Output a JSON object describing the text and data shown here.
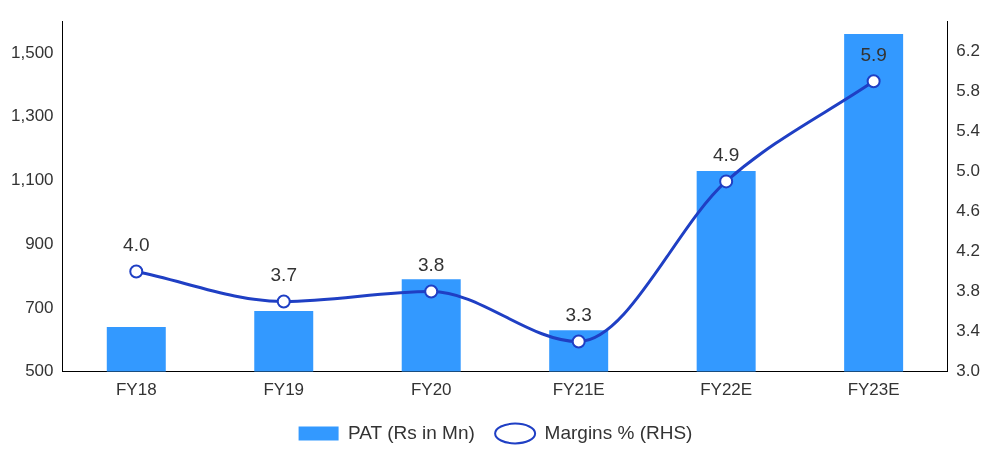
{
  "chart_data": {
    "type": "bar",
    "categories": [
      "FY18",
      "FY19",
      "FY20",
      "FY21E",
      "FY22E",
      "FY23E"
    ],
    "series": [
      {
        "name": "PAT (Rs in Mn)",
        "color": "#3399ff",
        "values": [
          640,
          690,
          790,
          630,
          1130,
          1560
        ]
      },
      {
        "name": "Margins % (RHS)",
        "type": "line",
        "axis": "y2",
        "color": "#1f3fc4",
        "values": [
          4.0,
          3.7,
          3.8,
          3.3,
          4.9,
          5.9
        ],
        "value_labels": [
          "4.0",
          "3.7",
          "3.8",
          "3.3",
          "4.9",
          "5.9"
        ]
      }
    ],
    "ylim": [
      500,
      1600
    ],
    "yticks": [
      {
        "value": 500,
        "label": "500"
      },
      {
        "value": 700,
        "label": "700"
      },
      {
        "value": 900,
        "label": "900"
      },
      {
        "value": 1100,
        "label": "1,100"
      },
      {
        "value": 1300,
        "label": "1,300"
      },
      {
        "value": 1500,
        "label": "1,500"
      }
    ],
    "y2lim": [
      3.0,
      6.5
    ],
    "y2ticks": [
      {
        "value": 3.0,
        "label": "3.0"
      },
      {
        "value": 3.4,
        "label": "3.4"
      },
      {
        "value": 3.8,
        "label": "3.8"
      },
      {
        "value": 4.2,
        "label": "4.2"
      },
      {
        "value": 4.6,
        "label": "4.6"
      },
      {
        "value": 5.0,
        "label": "5.0"
      },
      {
        "value": 5.4,
        "label": "5.4"
      },
      {
        "value": 5.8,
        "label": "5.8"
      },
      {
        "value": 6.2,
        "label": "6.2"
      }
    ],
    "grid": false,
    "legend": "bottom",
    "marker": "circle",
    "line_style": "solid"
  }
}
